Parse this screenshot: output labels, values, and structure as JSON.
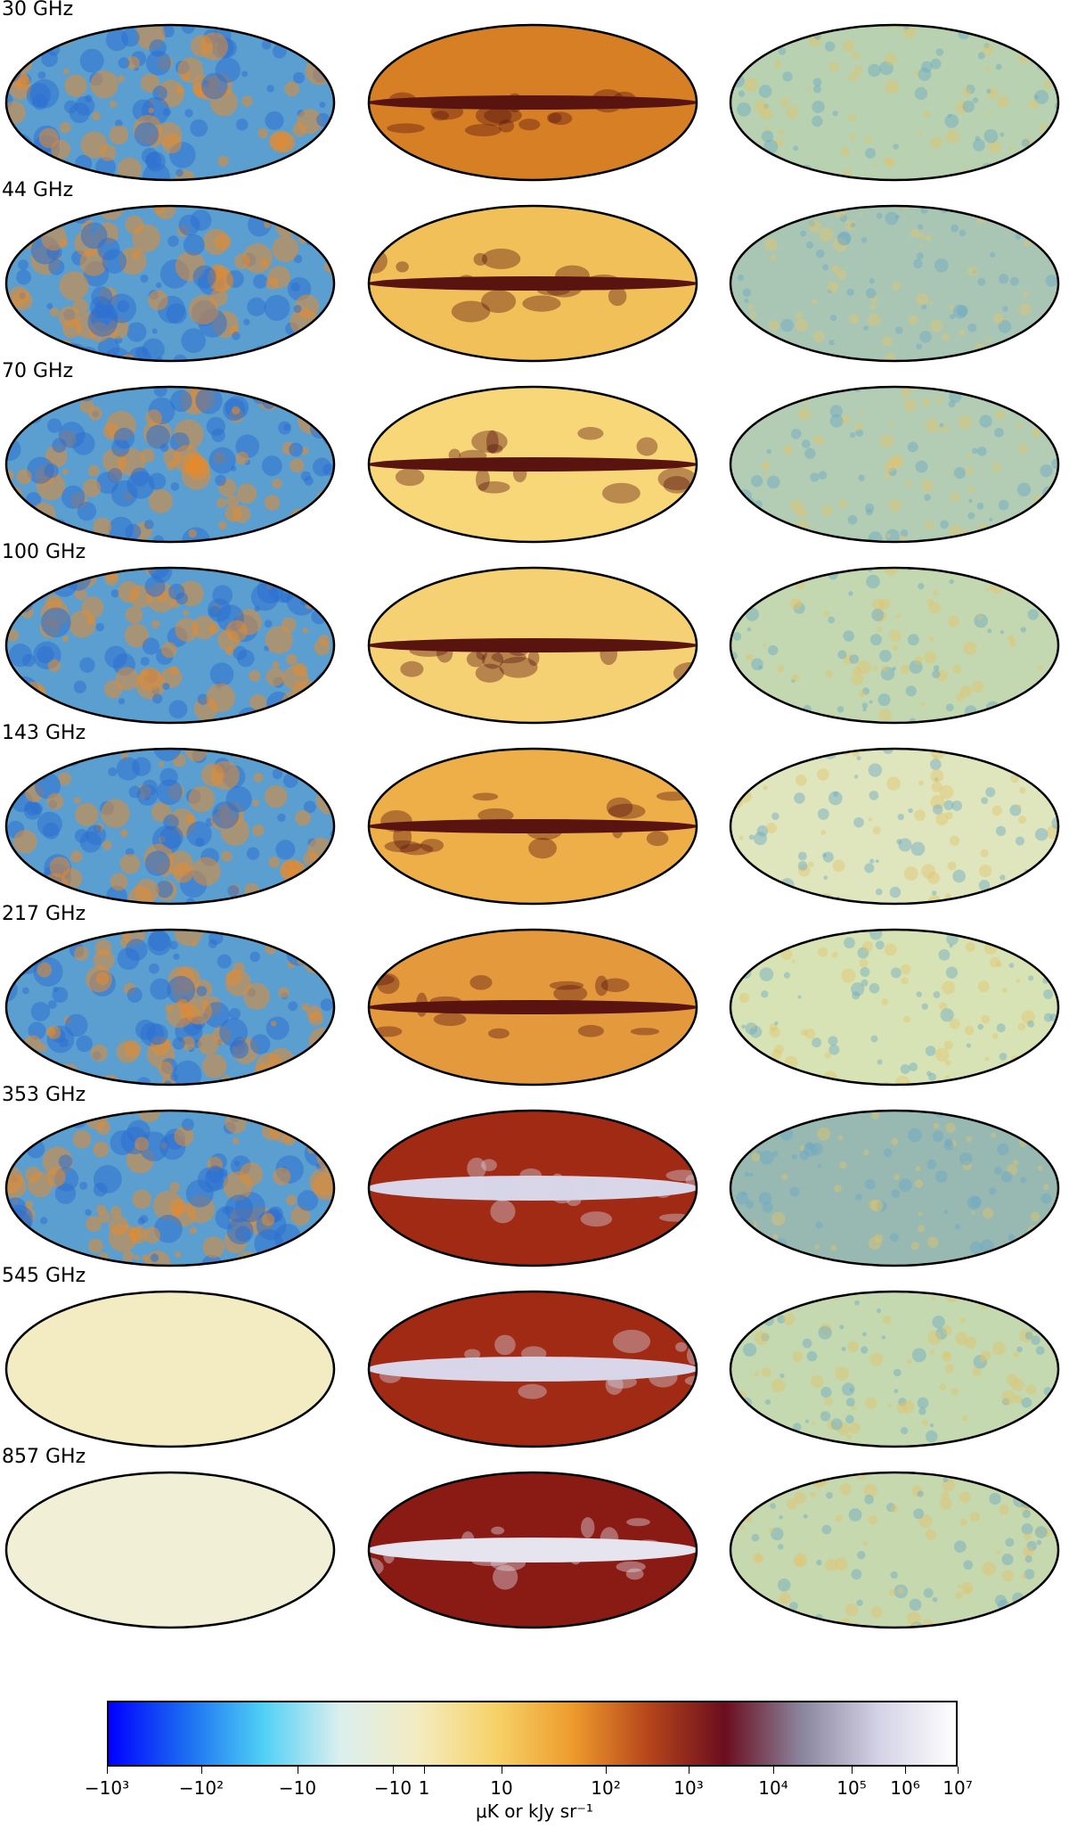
{
  "frequencies": [
    {
      "label": "30 GHz",
      "cmb": "#5b9fd0",
      "fg": "#d77f24",
      "fg_band": "#5a1410",
      "res": "#b8d1b0"
    },
    {
      "label": "44 GHz",
      "cmb": "#5b9fd0",
      "fg": "#f2c058",
      "fg_band": "#5a1410",
      "res": "#a9c6b5"
    },
    {
      "label": "70 GHz",
      "cmb": "#5b9fd0",
      "fg": "#f8d778",
      "fg_band": "#5a1410",
      "res": "#b3cdb4"
    },
    {
      "label": "100 GHz",
      "cmb": "#5b9fd0",
      "fg": "#f6d173",
      "fg_band": "#5a1410",
      "res": "#c3d8b0"
    },
    {
      "label": "143 GHz",
      "cmb": "#5b9fd0",
      "fg": "#eeaf48",
      "fg_band": "#5a1410",
      "res": "#dfe6bd"
    },
    {
      "label": "217 GHz",
      "cmb": "#5b9fd0",
      "fg": "#e49a3c",
      "fg_band": "#5a1410",
      "res": "#d7e3b4"
    },
    {
      "label": "353 GHz",
      "cmb": "#5b9fd0",
      "fg": "#a12a15",
      "fg_band": "#d8d6e8",
      "res": "#98b9b2"
    },
    {
      "label": "545 GHz",
      "cmb": "#f3ecc2",
      "fg": "#a12a15",
      "fg_band": "#d8d6e8",
      "res": "#c4d9b0"
    },
    {
      "label": "857 GHz",
      "cmb": "#f1efd6",
      "fg": "#8a1a14",
      "fg_band": "#e6e4ef",
      "res": "#c6d8ae"
    }
  ],
  "colorbar": {
    "ticks": [
      "−10³",
      "−10²",
      "−10",
      "−10",
      "1",
      "10",
      "10²",
      "10³",
      "10⁴",
      "10⁵",
      "10⁶",
      "10⁷"
    ],
    "unit_label": "μK or kJy sr⁻¹",
    "colors": [
      "#0000ff",
      "#1b6cf2",
      "#4fd0f5",
      "#dbefef",
      "#f3ecc2",
      "#f6d36a",
      "#ee9d2d",
      "#b7461b",
      "#6b0d1e",
      "#8b869f",
      "#d4d2e6",
      "#ffffff"
    ]
  }
}
